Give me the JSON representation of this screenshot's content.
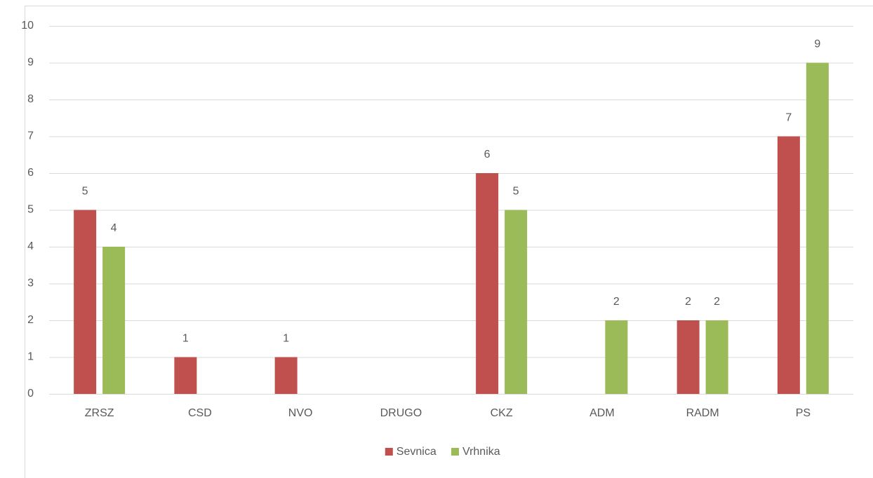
{
  "chart_data": {
    "type": "bar",
    "categories": [
      "ZRSZ",
      "CSD",
      "NVO",
      "DRUGO",
      "CKZ",
      "ADM",
      "RADM",
      "PS"
    ],
    "series": [
      {
        "name": "Sevnica",
        "color": "#c0504d",
        "values": [
          5,
          1,
          1,
          null,
          6,
          null,
          2,
          7
        ]
      },
      {
        "name": "Vrhnika",
        "color": "#9bbb59",
        "values": [
          4,
          null,
          null,
          null,
          5,
          2,
          2,
          9
        ]
      }
    ],
    "ylim": [
      0,
      10
    ],
    "yticks": [
      0,
      1,
      2,
      3,
      4,
      5,
      6,
      7,
      8,
      9,
      10
    ],
    "grid": true,
    "legend": "bottom"
  }
}
